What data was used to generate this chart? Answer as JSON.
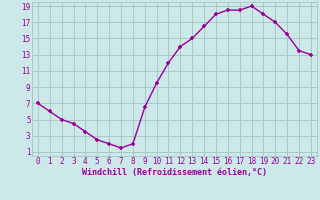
{
  "x": [
    0,
    1,
    2,
    3,
    4,
    5,
    6,
    7,
    8,
    9,
    10,
    11,
    12,
    13,
    14,
    15,
    16,
    17,
    18,
    19,
    20,
    21,
    22,
    23
  ],
  "y": [
    7,
    6,
    5,
    4.5,
    3.5,
    2.5,
    2,
    1.5,
    2,
    6.5,
    9.5,
    12,
    14,
    15,
    16.5,
    18,
    18.5,
    18.5,
    19,
    18,
    17,
    15.5,
    13.5,
    13
  ],
  "line_color": "#990099",
  "marker": "+",
  "bg_color": "#cce8e8",
  "grid_color": "#aac8c8",
  "xlabel": "Windchill (Refroidissement éolien,°C)",
  "xlabel_color": "#990099",
  "tick_color": "#990099",
  "ylim_min": 1,
  "ylim_max": 19,
  "xlim_min": 0,
  "xlim_max": 23,
  "yticks": [
    1,
    3,
    5,
    7,
    9,
    11,
    13,
    15,
    17,
    19
  ],
  "xticks": [
    0,
    1,
    2,
    3,
    4,
    5,
    6,
    7,
    8,
    9,
    10,
    11,
    12,
    13,
    14,
    15,
    16,
    17,
    18,
    19,
    20,
    21,
    22,
    23
  ],
  "tick_fontsize": 5.5,
  "xlabel_fontsize": 6.0
}
